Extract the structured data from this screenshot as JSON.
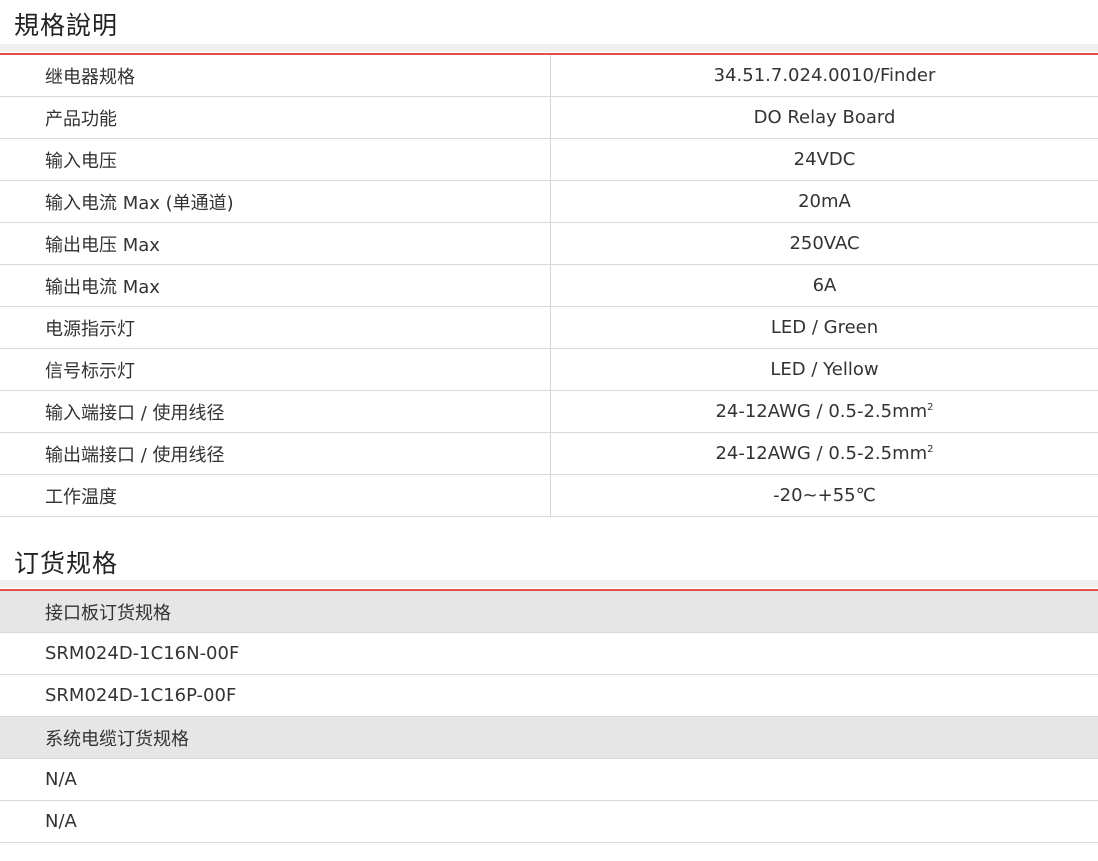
{
  "spec": {
    "title": "規格說明",
    "rows": [
      {
        "label": "继电器规格",
        "value": "34.51.7.024.0010/Finder"
      },
      {
        "label": "产品功能",
        "value": "DO Relay Board"
      },
      {
        "label": "输入电压",
        "value": "24VDC"
      },
      {
        "label": "输入电流 Max (单通道)",
        "value": "20mA"
      },
      {
        "label": "输出电压 Max",
        "value": "250VAC"
      },
      {
        "label": "输出电流 Max",
        "value": "6A"
      },
      {
        "label": "电源指示灯",
        "value": "LED / Green"
      },
      {
        "label": "信号标示灯",
        "value": "LED / Yellow"
      },
      {
        "label": "输入端接口 / 使用线径",
        "value": "24-12AWG / 0.5-2.5mm",
        "sup": "2"
      },
      {
        "label": "输出端接口 / 使用线径",
        "value": "24-12AWG / 0.5-2.5mm",
        "sup": "2"
      },
      {
        "label": "工作温度",
        "value": "-20~+55℃"
      }
    ]
  },
  "order": {
    "title": "订货规格",
    "rows": [
      {
        "text": "接口板订货规格",
        "header": true
      },
      {
        "text": "SRM024D-1C16N-00F"
      },
      {
        "text": "SRM024D-1C16P-00F"
      },
      {
        "text": "系统电缆订货规格",
        "header": true
      },
      {
        "text": "N/A"
      },
      {
        "text": "N/A"
      }
    ]
  },
  "colors": {
    "accent": "#e0504a",
    "header_bg": "#e6e6e6"
  }
}
